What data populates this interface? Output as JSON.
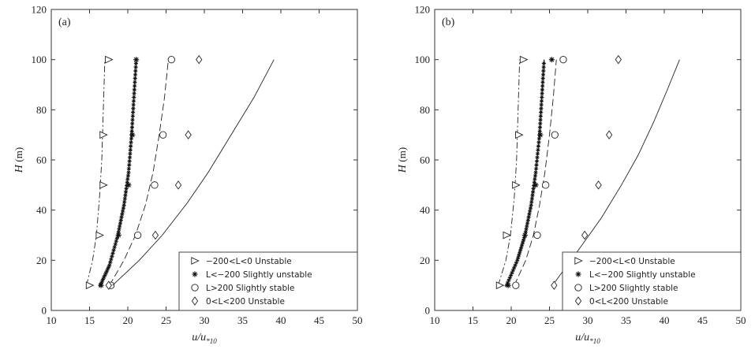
{
  "chart_data": [
    {
      "type": "line",
      "panel_label": "(a)",
      "xlabel": "u/u",
      "xlabel_subscript": "*10",
      "ylabel": "H",
      "ylabel_unit": "(m)",
      "xlim": [
        10,
        50
      ],
      "ylim": [
        0,
        120
      ],
      "xticks": [
        10,
        15,
        20,
        25,
        30,
        35,
        40,
        45,
        50
      ],
      "yticks": [
        0,
        20,
        40,
        60,
        80,
        100,
        120
      ],
      "grid": false,
      "legend_position": "bottom-right",
      "series": [
        {
          "name": "−200<L<0 Unstable",
          "marker": "triangle-right",
          "line": "dash-dot",
          "points": [
            [
              15.0,
              10
            ],
            [
              16.3,
              30
            ],
            [
              16.8,
              50
            ],
            [
              16.8,
              70
            ],
            [
              17.5,
              100
            ]
          ],
          "fit": [
            [
              14.6,
              10
            ],
            [
              15.4,
              20
            ],
            [
              15.9,
              30
            ],
            [
              16.3,
              45
            ],
            [
              16.6,
              60
            ],
            [
              16.8,
              80
            ],
            [
              17.0,
              100
            ]
          ]
        },
        {
          "name": "L<−200 Slightly unstable",
          "marker": "asterisk",
          "line": "solid-starred",
          "points": [
            [
              16.5,
              10
            ],
            [
              18.8,
              30
            ],
            [
              20.1,
              50
            ],
            [
              20.6,
              70
            ],
            [
              21.1,
              100
            ]
          ],
          "fit": [
            [
              16.4,
              10
            ],
            [
              17.6,
              18
            ],
            [
              18.7,
              30
            ],
            [
              19.5,
              42
            ],
            [
              20.1,
              55
            ],
            [
              20.5,
              70
            ],
            [
              20.8,
              85
            ],
            [
              21.1,
              100
            ]
          ]
        },
        {
          "name": "L>200 Slightly stable",
          "marker": "circle",
          "line": "dashed",
          "points": [
            [
              17.8,
              10
            ],
            [
              21.3,
              30
            ],
            [
              23.5,
              50
            ],
            [
              24.6,
              70
            ],
            [
              25.7,
              100
            ]
          ],
          "fit": [
            [
              17.6,
              10
            ],
            [
              19.5,
              20
            ],
            [
              21.0,
              30
            ],
            [
              22.3,
              42
            ],
            [
              23.3,
              55
            ],
            [
              24.1,
              70
            ],
            [
              24.8,
              85
            ],
            [
              25.3,
              100
            ]
          ]
        },
        {
          "name": "0<L<200 Unstable",
          "marker": "diamond",
          "line": "solid",
          "points": [
            [
              17.5,
              10
            ],
            [
              23.6,
              30
            ],
            [
              26.6,
              50
            ],
            [
              27.9,
              70
            ],
            [
              29.3,
              100
            ]
          ],
          "fit": [
            [
              18.0,
              10
            ],
            [
              21.5,
              20
            ],
            [
              24.5,
              30
            ],
            [
              27.8,
              43
            ],
            [
              30.5,
              55
            ],
            [
              33.5,
              70
            ],
            [
              36.5,
              85
            ],
            [
              39.1,
              100
            ]
          ]
        }
      ]
    },
    {
      "type": "line",
      "panel_label": "(b)",
      "xlabel": "u/u",
      "xlabel_subscript": "*10",
      "ylabel": "H",
      "ylabel_unit": "(m)",
      "xlim": [
        10,
        50
      ],
      "ylim": [
        0,
        120
      ],
      "xticks": [
        10,
        15,
        20,
        25,
        30,
        35,
        40,
        45,
        50
      ],
      "yticks": [
        0,
        20,
        40,
        60,
        80,
        100,
        120
      ],
      "grid": false,
      "legend_position": "bottom-right",
      "series": [
        {
          "name": "−200<L<0 Unstable",
          "marker": "triangle-right",
          "line": "dash-dot",
          "points": [
            [
              18.5,
              10
            ],
            [
              19.4,
              30
            ],
            [
              20.6,
              50
            ],
            [
              21.0,
              70
            ],
            [
              21.6,
              100
            ]
          ],
          "fit": [
            [
              18.3,
              10
            ],
            [
              19.3,
              20
            ],
            [
              19.9,
              30
            ],
            [
              20.4,
              45
            ],
            [
              20.7,
              60
            ],
            [
              20.9,
              80
            ],
            [
              21.1,
              100
            ]
          ]
        },
        {
          "name": "L<−200 Slightly unstable",
          "marker": "asterisk",
          "line": "solid-starred",
          "points": [
            [
              19.6,
              10
            ],
            [
              21.8,
              30
            ],
            [
              23.2,
              50
            ],
            [
              23.8,
              70
            ],
            [
              25.3,
              100
            ]
          ],
          "fit": [
            [
              19.4,
              10
            ],
            [
              20.8,
              20
            ],
            [
              21.8,
              30
            ],
            [
              22.6,
              42
            ],
            [
              23.2,
              55
            ],
            [
              23.7,
              70
            ],
            [
              24.0,
              85
            ],
            [
              24.3,
              100
            ]
          ]
        },
        {
          "name": "L>200 Slightly stable",
          "marker": "circle",
          "line": "dashed",
          "points": [
            [
              20.6,
              10
            ],
            [
              23.4,
              30
            ],
            [
              24.5,
              50
            ],
            [
              25.7,
              70
            ],
            [
              26.8,
              100
            ]
          ],
          "fit": [
            [
              20.4,
              10
            ],
            [
              21.9,
              20
            ],
            [
              22.9,
              30
            ],
            [
              23.7,
              42
            ],
            [
              24.4,
              55
            ],
            [
              25.0,
              70
            ],
            [
              25.5,
              85
            ],
            [
              25.9,
              100
            ]
          ]
        },
        {
          "name": "0<L<200 Unstable",
          "marker": "diamond",
          "line": "solid",
          "points": [
            [
              25.6,
              10
            ],
            [
              29.6,
              30
            ],
            [
              31.4,
              50
            ],
            [
              32.8,
              70
            ],
            [
              34.0,
              100
            ]
          ],
          "fit": [
            [
              25.4,
              10
            ],
            [
              29.0,
              25
            ],
            [
              31.8,
              37
            ],
            [
              34.4,
              50
            ],
            [
              36.6,
              62
            ],
            [
              38.6,
              75
            ],
            [
              40.4,
              88
            ],
            [
              42.0,
              100
            ]
          ]
        }
      ]
    }
  ]
}
